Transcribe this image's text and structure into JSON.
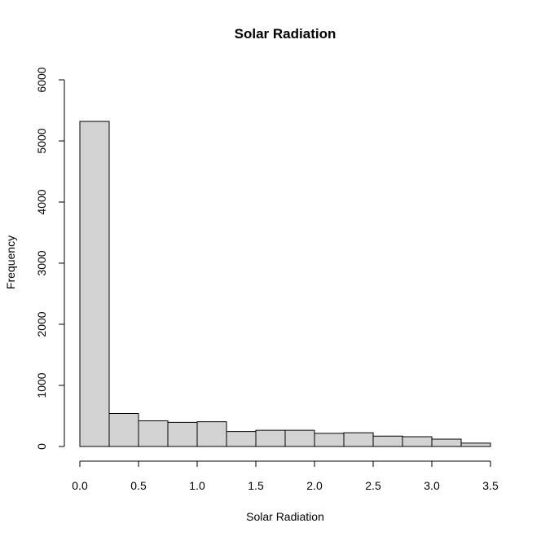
{
  "chart_data": {
    "type": "bar",
    "title": "Solar Radiation",
    "xlabel": "Solar Radiation",
    "ylabel": "Frequency",
    "bin_width": 0.25,
    "bins": [
      {
        "start": 0.0,
        "end": 0.25,
        "count": 5320
      },
      {
        "start": 0.25,
        "end": 0.5,
        "count": 540
      },
      {
        "start": 0.5,
        "end": 0.75,
        "count": 420
      },
      {
        "start": 0.75,
        "end": 1.0,
        "count": 395
      },
      {
        "start": 1.0,
        "end": 1.25,
        "count": 405
      },
      {
        "start": 1.25,
        "end": 1.5,
        "count": 245
      },
      {
        "start": 1.5,
        "end": 1.75,
        "count": 265
      },
      {
        "start": 1.75,
        "end": 2.0,
        "count": 265
      },
      {
        "start": 2.0,
        "end": 2.25,
        "count": 215
      },
      {
        "start": 2.25,
        "end": 2.5,
        "count": 225
      },
      {
        "start": 2.5,
        "end": 2.75,
        "count": 170
      },
      {
        "start": 2.75,
        "end": 3.0,
        "count": 160
      },
      {
        "start": 3.0,
        "end": 3.25,
        "count": 120
      },
      {
        "start": 3.25,
        "end": 3.5,
        "count": 55
      }
    ],
    "xlim": [
      0,
      3.5
    ],
    "ylim": [
      0,
      6000
    ],
    "x_ticks": [
      "0.0",
      "0.5",
      "1.0",
      "1.5",
      "2.0",
      "2.5",
      "3.0",
      "3.5"
    ],
    "y_ticks": [
      "0",
      "1000",
      "2000",
      "3000",
      "4000",
      "5000",
      "6000"
    ],
    "grid": false,
    "legend": "none",
    "colors": {
      "bar_fill": "#d3d3d3",
      "bar_stroke": "#000000"
    }
  }
}
